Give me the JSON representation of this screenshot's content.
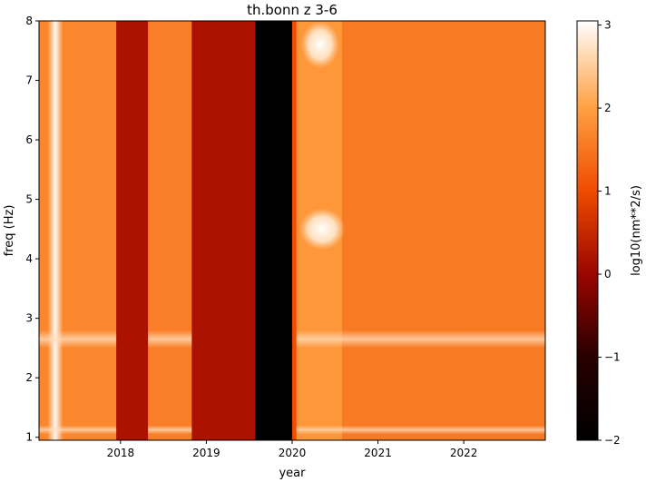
{
  "chart_data": {
    "type": "heatmap",
    "title": "th.bonn z 3-6",
    "xlabel": "year",
    "ylabel": "freq (Hz)",
    "xlim": [
      2017.05,
      2022.95
    ],
    "ylim": [
      0.95,
      8.0
    ],
    "x_ticks": [
      2018,
      2019,
      2020,
      2021,
      2022
    ],
    "x_tick_labels": [
      "2018",
      "2019",
      "2020",
      "2021",
      "2022"
    ],
    "y_ticks": [
      1,
      2,
      3,
      4,
      5,
      6,
      7,
      8
    ],
    "y_tick_labels": [
      "1",
      "2",
      "3",
      "4",
      "5",
      "6",
      "7",
      "8"
    ],
    "colorbar": {
      "label": "log10(nm**2/s)",
      "colormap": "gist_heat",
      "range": [
        -2,
        3.05
      ],
      "ticks": [
        -2,
        -1,
        0,
        1,
        2,
        3
      ],
      "tick_labels": [
        "−2",
        "−1",
        "0",
        "1",
        "2",
        "3"
      ]
    },
    "time_segments": [
      {
        "start": 2017.05,
        "end": 2017.95,
        "level": 1.7
      },
      {
        "start": 2017.95,
        "end": 2018.32,
        "level": 0.2
      },
      {
        "start": 2018.32,
        "end": 2018.83,
        "level": 1.6
      },
      {
        "start": 2018.83,
        "end": 2019.57,
        "level": 0.2
      },
      {
        "start": 2019.57,
        "end": 2020.0,
        "level": -2.0
      },
      {
        "start": 2020.0,
        "end": 2020.05,
        "level": 1.0
      },
      {
        "start": 2020.05,
        "end": 2020.58,
        "level": 1.9
      },
      {
        "start": 2020.58,
        "end": 2022.95,
        "level": 1.55
      }
    ],
    "features": [
      {
        "kind": "bright_vertical_band",
        "x": [
          2017.15,
          2017.33
        ],
        "level": 3.0
      },
      {
        "kind": "bright_patch",
        "x": [
          2020.08,
          2020.62
        ],
        "y": [
          4.15,
          4.85
        ],
        "level": 3.0
      },
      {
        "kind": "bright_patch",
        "x": [
          2020.1,
          2020.55
        ],
        "y": [
          7.2,
          8.0
        ],
        "level": 2.4
      },
      {
        "kind": "bright_horizontal_band",
        "y": [
          2.5,
          2.8
        ],
        "level": 2.3
      },
      {
        "kind": "bright_horizontal_band",
        "y": [
          1.05,
          1.2
        ],
        "level": 2.4
      }
    ]
  }
}
